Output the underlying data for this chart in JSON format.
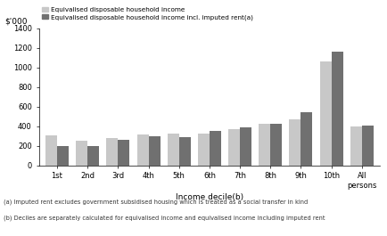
{
  "categories": [
    "1st",
    "2nd",
    "3rd",
    "4th",
    "5th",
    "6th",
    "7th",
    "8th",
    "9th",
    "10th",
    "All\npersons"
  ],
  "series1_label": "Equivalised disposable household income",
  "series2_label": "Equivalised disposable household income incl. imputed rent(a)",
  "series1_values": [
    305,
    255,
    280,
    310,
    320,
    325,
    370,
    420,
    470,
    1060,
    400
  ],
  "series2_values": [
    195,
    195,
    260,
    295,
    285,
    355,
    385,
    420,
    545,
    1160,
    405
  ],
  "color1": "#c8c8c8",
  "color2": "#707070",
  "ylabel": "$'000",
  "xlabel": "Income decile(b)",
  "ylim": [
    0,
    1400
  ],
  "yticks": [
    0,
    200,
    400,
    600,
    800,
    1000,
    1200,
    1400
  ],
  "footnote1": "(a) Imputed rent excludes government subsidised housing which is treated as a social transfer in kind",
  "footnote2": "(b) Deciles are separately calculated for equivalised income and equivalised income including imputed rent",
  "bg_color": "#ffffff",
  "bar_width": 0.38
}
